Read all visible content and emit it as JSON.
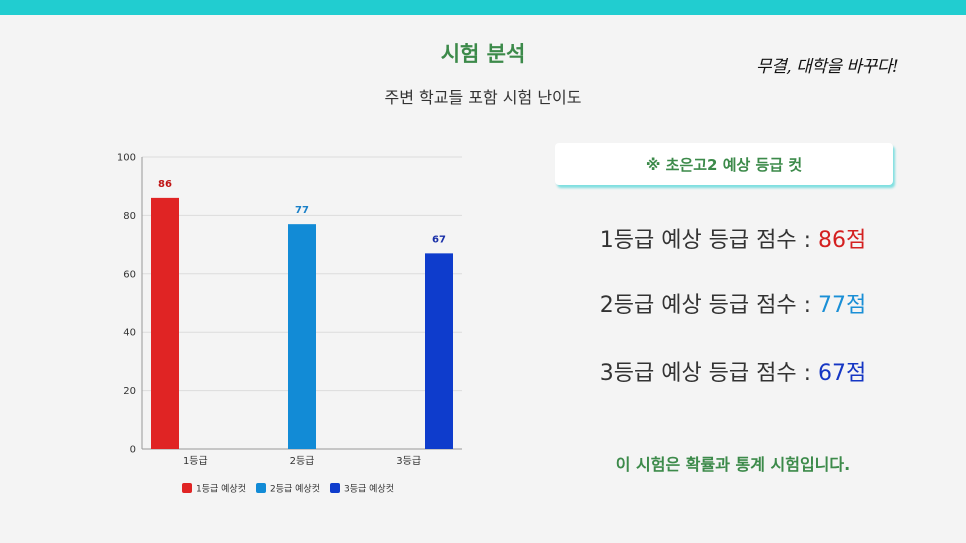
{
  "header": {
    "title": "시험 분석",
    "subtitle": "주변 학교들 포함 시험 난이도",
    "slogan": "무결, 대학을 바꾸다!"
  },
  "cut_box": {
    "label": "※ 초은고2 예상 등급 컷"
  },
  "scores": [
    {
      "label": "1등급 예상 등급 점수 : ",
      "value": "86점",
      "color": "#d42020"
    },
    {
      "label": "2등급 예상 등급 점수 : ",
      "value": "77점",
      "color": "#1a8fd6"
    },
    {
      "label": "3등급 예상 등급 점수 : ",
      "value": "67점",
      "color": "#1536c4"
    }
  ],
  "note": "이 시험은 확률과 통계 시험입니다.",
  "colors": {
    "accent": "#21cdd0",
    "title_green": "#3c8a4a"
  },
  "chart_data": {
    "type": "bar",
    "categories": [
      "1등급",
      "2등급",
      "3등급"
    ],
    "series": [
      {
        "name": "1등급 예상컷",
        "color": "#e02424",
        "values": [
          86,
          null,
          null
        ]
      },
      {
        "name": "2등급 예상컷",
        "color": "#128bd6",
        "values": [
          null,
          77,
          null
        ]
      },
      {
        "name": "3등급 예상컷",
        "color": "#0e3ccc",
        "values": [
          null,
          null,
          67
        ]
      }
    ],
    "label_colors": [
      "#c01515",
      "#1a80c8",
      "#1a30a8"
    ],
    "yticks": [
      0,
      20,
      40,
      60,
      80,
      100
    ],
    "ylim": [
      0,
      100
    ],
    "grid": true,
    "legend": "bottom"
  }
}
